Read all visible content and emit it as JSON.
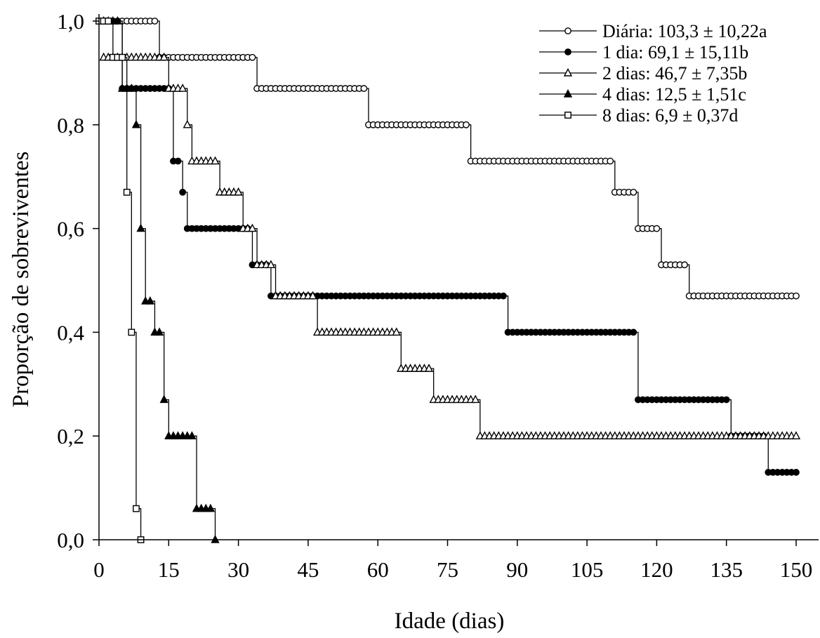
{
  "chart_data": {
    "type": "line",
    "title": "",
    "xlabel": "Idade (dias)",
    "ylabel": "Proporção de sobreviventes",
    "xlim": [
      0,
      150
    ],
    "ylim": [
      0,
      1
    ],
    "x_ticks": [
      0,
      15,
      30,
      45,
      60,
      75,
      90,
      105,
      120,
      135,
      150
    ],
    "x_tick_labels": [
      "0",
      "15",
      "30",
      "45",
      "60",
      "75",
      "90",
      "105",
      "120",
      "135",
      "150"
    ],
    "y_ticks": [
      0,
      0.2,
      0.4,
      0.6,
      0.8,
      1.0
    ],
    "y_tick_labels": [
      "0,0",
      "0,2",
      "0,4",
      "0,6",
      "0,8",
      "1,0"
    ],
    "step": true,
    "legend_position": "top-right",
    "series": [
      {
        "name": "Diária: 103,3 ± 10,22a",
        "marker": "open-circle",
        "x_start": 1,
        "x_end": 150,
        "steps": [
          [
            1,
            1.0
          ],
          [
            13,
            0.93
          ],
          [
            34,
            0.87
          ],
          [
            58,
            0.8
          ],
          [
            80,
            0.73
          ],
          [
            111,
            0.67
          ],
          [
            116,
            0.6
          ],
          [
            121,
            0.53
          ],
          [
            127,
            0.47
          ]
        ]
      },
      {
        "name": "1 dia: 69,1 ± 15,11b",
        "marker": "filled-circle",
        "x_start": 1,
        "x_end": 150,
        "steps": [
          [
            1,
            1.0
          ],
          [
            5,
            0.87
          ],
          [
            16,
            0.73
          ],
          [
            18,
            0.67
          ],
          [
            19,
            0.6
          ],
          [
            33,
            0.53
          ],
          [
            37,
            0.47
          ],
          [
            88,
            0.4
          ],
          [
            116,
            0.27
          ],
          [
            136,
            0.2
          ],
          [
            144,
            0.13
          ]
        ]
      },
      {
        "name": "2 dias: 46,7 ± 7,35b",
        "marker": "open-triangle",
        "x_start": 1,
        "x_end": 150,
        "steps": [
          [
            1,
            0.93
          ],
          [
            15,
            0.87
          ],
          [
            19,
            0.8
          ],
          [
            20,
            0.73
          ],
          [
            26,
            0.67
          ],
          [
            31,
            0.6
          ],
          [
            34,
            0.53
          ],
          [
            38,
            0.47
          ],
          [
            47,
            0.4
          ],
          [
            65,
            0.33
          ],
          [
            72,
            0.27
          ],
          [
            82,
            0.2
          ]
        ]
      },
      {
        "name": "4 dias: 12,5 ± 1,51c",
        "marker": "filled-triangle",
        "x_start": 1,
        "x_end": 25,
        "steps": [
          [
            1,
            1.0
          ],
          [
            5,
            0.87
          ],
          [
            8,
            0.8
          ],
          [
            9,
            0.6
          ],
          [
            10,
            0.46
          ],
          [
            12,
            0.4
          ],
          [
            14,
            0.27
          ],
          [
            15,
            0.2
          ],
          [
            21,
            0.06
          ],
          [
            25,
            0.0
          ]
        ]
      },
      {
        "name": "8 dias: 6,9 ± 0,37d",
        "marker": "open-square",
        "x_start": 0,
        "x_end": 9,
        "steps": [
          [
            0,
            1.0
          ],
          [
            3,
            0.93
          ],
          [
            6,
            0.67
          ],
          [
            7,
            0.4
          ],
          [
            8,
            0.06
          ],
          [
            9,
            0.0
          ]
        ]
      }
    ]
  }
}
